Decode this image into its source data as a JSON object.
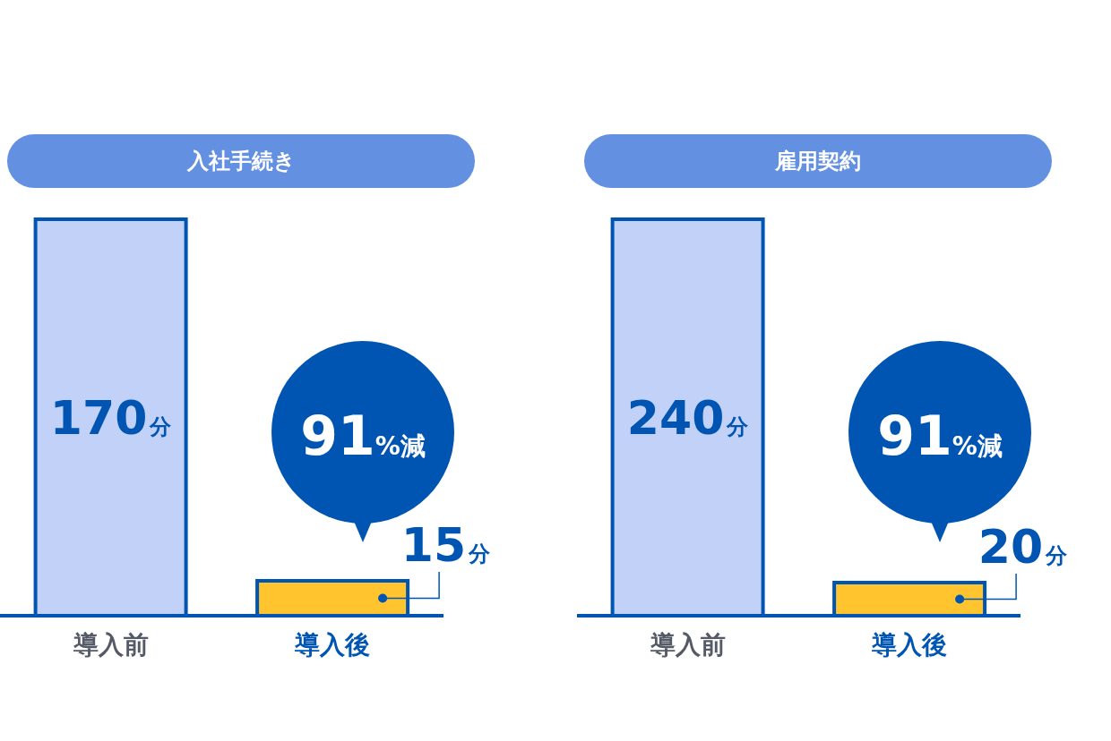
{
  "chart_data": [
    {
      "type": "bar",
      "title": "入社手続き",
      "categories": [
        "導入前",
        "導入後"
      ],
      "values": [
        170,
        15
      ],
      "colors": [
        "#c2d1f7",
        "#ffc42e"
      ],
      "value_labels": [
        "170分",
        "15分"
      ],
      "annotations": [
        "91%減"
      ]
    },
    {
      "type": "bar",
      "title": "雇用契約",
      "categories": [
        "導入前",
        "導入後"
      ],
      "values": [
        240,
        20
      ],
      "colors": [
        "#c2d1f7",
        "#ffc42e"
      ],
      "value_labels": [
        "240分",
        "20分"
      ],
      "annotations": [
        "91%減"
      ]
    }
  ]
}
